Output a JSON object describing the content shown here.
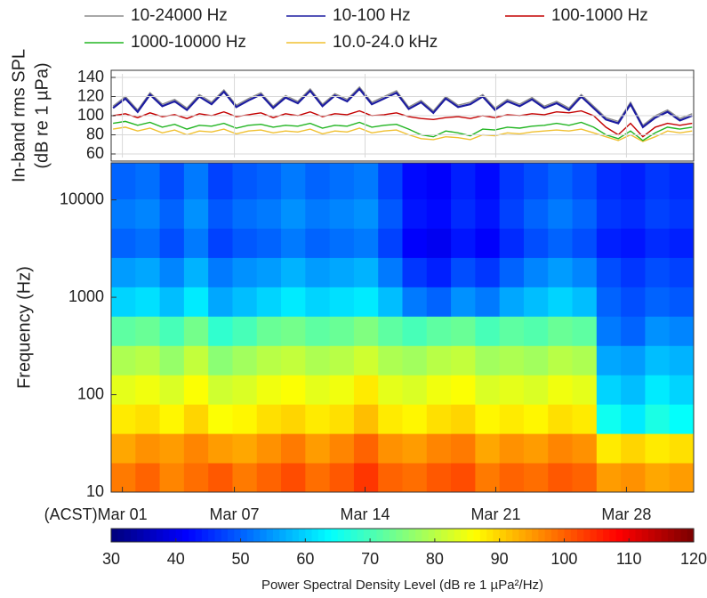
{
  "chart_data": [
    {
      "type": "line",
      "ylabel": [
        "In-band rms SPL",
        "(dB re 1 µPa)"
      ],
      "xlim": [
        0.4,
        31.6
      ],
      "ylim": [
        60,
        140
      ],
      "yticks": [
        60,
        80,
        100,
        120,
        140
      ],
      "xticks": [
        1,
        7,
        14,
        21,
        28
      ],
      "grid": true,
      "x": [
        0.5,
        1.16,
        1.82,
        2.48,
        3.14,
        3.8,
        4.46,
        5.12,
        5.78,
        6.44,
        7.1,
        7.76,
        8.42,
        9.08,
        9.74,
        10.4,
        11.06,
        11.72,
        12.38,
        13.04,
        13.7,
        14.36,
        15.02,
        15.68,
        16.34,
        17.0,
        17.66,
        18.32,
        18.98,
        19.64,
        20.3,
        20.96,
        21.62,
        22.28,
        22.94,
        23.6,
        24.26,
        24.92,
        25.58,
        26.24,
        26.9,
        27.56,
        28.22,
        28.88,
        29.54,
        30.2,
        30.86,
        31.52
      ],
      "series": [
        {
          "name": "10-24000 Hz",
          "color": "#8c8c8c",
          "values": [
            110,
            120,
            106,
            124,
            112,
            117,
            108,
            122,
            114,
            127,
            111,
            118,
            124,
            110,
            121,
            115,
            128,
            112,
            123,
            117,
            130,
            114,
            120,
            126,
            109,
            116,
            105,
            120,
            111,
            114,
            122,
            108,
            117,
            112,
            119,
            110,
            115,
            108,
            122,
            110,
            98,
            94,
            114,
            90,
            100,
            106,
            97,
            102
          ]
        },
        {
          "name": "10-100 Hz",
          "color": "#1c1ca0",
          "values": [
            108,
            118,
            104,
            122,
            110,
            115,
            106,
            120,
            112,
            125,
            109,
            116,
            122,
            108,
            119,
            113,
            126,
            110,
            121,
            115,
            128,
            112,
            118,
            124,
            107,
            114,
            103,
            118,
            109,
            112,
            120,
            106,
            115,
            110,
            117,
            108,
            113,
            106,
            120,
            108,
            96,
            92,
            112,
            88,
            98,
            104,
            95,
            100
          ]
        },
        {
          "name": "100-1000 Hz",
          "color": "#c40000",
          "values": [
            100,
            102,
            98,
            103,
            99,
            101,
            97,
            102,
            100,
            104,
            99,
            101,
            103,
            98,
            102,
            100,
            104,
            99,
            102,
            101,
            105,
            100,
            101,
            103,
            99,
            97,
            96,
            98,
            99,
            97,
            100,
            98,
            101,
            100,
            102,
            101,
            104,
            103,
            105,
            100,
            88,
            80,
            92,
            78,
            88,
            92,
            90,
            92
          ]
        },
        {
          "name": "1000-10000 Hz",
          "color": "#22b522",
          "values": [
            92,
            94,
            90,
            93,
            88,
            91,
            86,
            90,
            89,
            92,
            87,
            90,
            91,
            88,
            90,
            89,
            92,
            87,
            90,
            89,
            93,
            88,
            90,
            91,
            86,
            80,
            78,
            84,
            82,
            79,
            86,
            85,
            88,
            87,
            89,
            90,
            92,
            90,
            93,
            88,
            80,
            76,
            84,
            74,
            82,
            88,
            86,
            88
          ]
        },
        {
          "name": "10.0-24.0 kHz",
          "color": "#f0c030",
          "values": [
            86,
            88,
            84,
            87,
            82,
            85,
            80,
            84,
            83,
            86,
            81,
            84,
            85,
            82,
            84,
            83,
            86,
            81,
            84,
            83,
            87,
            82,
            84,
            85,
            80,
            76,
            75,
            78,
            77,
            75,
            80,
            79,
            82,
            81,
            83,
            84,
            85,
            84,
            86,
            82,
            78,
            74,
            80,
            73,
            78,
            84,
            82,
            84
          ]
        }
      ]
    },
    {
      "type": "heatmap",
      "ylabel": "Frequency (Hz)",
      "x_prefix": "(ACST)",
      "xlim": [
        0.4,
        31.6
      ],
      "ylim": [
        10,
        24000
      ],
      "log_y": true,
      "colormap": "jet",
      "yticks": [
        10,
        100,
        1000,
        10000
      ],
      "xticks": [
        {
          "value": 1,
          "label": "Mar 01"
        },
        {
          "value": 7,
          "label": "Mar 07"
        },
        {
          "value": 14,
          "label": "Mar 14"
        },
        {
          "value": 21,
          "label": "Mar 21"
        },
        {
          "value": 28,
          "label": "Mar 28"
        }
      ],
      "x_edges": [
        0.4,
        1.7,
        3.0,
        4.3,
        5.6,
        6.9,
        8.2,
        9.5,
        10.8,
        12.1,
        13.4,
        14.7,
        16.0,
        17.3,
        18.6,
        19.9,
        21.2,
        22.5,
        23.8,
        25.1,
        26.4,
        27.7,
        29.0,
        30.3,
        31.6
      ],
      "y_edges": [
        10,
        20,
        40,
        80,
        160,
        320,
        640,
        1280,
        2560,
        5120,
        10240,
        24000
      ],
      "z": [
        [
          98,
          100,
          97,
          99,
          101,
          98,
          100,
          102,
          99,
          101,
          104,
          100,
          99,
          101,
          102,
          98,
          100,
          99,
          101,
          100,
          95,
          96,
          94,
          95
        ],
        [
          94,
          96,
          95,
          97,
          95,
          94,
          96,
          98,
          95,
          97,
          100,
          96,
          95,
          97,
          98,
          94,
          96,
          95,
          97,
          96,
          88,
          90,
          88,
          89
        ],
        [
          88,
          89,
          87,
          90,
          86,
          87,
          89,
          90,
          88,
          89,
          92,
          88,
          87,
          89,
          90,
          87,
          88,
          87,
          89,
          88,
          65,
          62,
          66,
          64
        ],
        [
          84,
          85,
          83,
          86,
          82,
          83,
          85,
          86,
          84,
          85,
          88,
          84,
          83,
          85,
          86,
          83,
          84,
          83,
          85,
          84,
          60,
          58,
          62,
          60
        ],
        [
          79,
          80,
          77,
          81,
          76,
          78,
          80,
          81,
          79,
          80,
          82,
          79,
          78,
          80,
          81,
          78,
          79,
          78,
          80,
          79,
          56,
          55,
          58,
          57
        ],
        [
          72,
          73,
          70,
          74,
          68,
          70,
          73,
          74,
          72,
          73,
          75,
          72,
          70,
          72,
          73,
          70,
          72,
          71,
          73,
          72,
          52,
          50,
          54,
          53
        ],
        [
          60,
          61,
          58,
          62,
          56,
          58,
          60,
          62,
          60,
          61,
          62,
          58,
          52,
          50,
          54,
          52,
          56,
          58,
          60,
          58,
          50,
          48,
          50,
          49
        ],
        [
          55,
          56,
          53,
          57,
          52,
          54,
          55,
          57,
          55,
          56,
          57,
          52,
          46,
          44,
          48,
          46,
          50,
          53,
          55,
          53,
          48,
          46,
          48,
          47
        ],
        [
          50,
          51,
          48,
          52,
          47,
          49,
          50,
          52,
          50,
          51,
          52,
          47,
          41,
          40,
          43,
          41,
          45,
          48,
          50,
          48,
          44,
          43,
          45,
          44
        ],
        [
          52,
          53,
          50,
          54,
          49,
          51,
          52,
          54,
          52,
          53,
          54,
          49,
          43,
          42,
          45,
          43,
          47,
          50,
          52,
          50,
          46,
          45,
          47,
          46
        ],
        [
          50,
          51,
          48,
          52,
          47,
          49,
          50,
          52,
          50,
          51,
          52,
          47,
          42,
          41,
          44,
          42,
          46,
          48,
          50,
          48,
          45,
          44,
          46,
          45
        ]
      ]
    },
    {
      "type": "colorbar",
      "colormap": "jet",
      "label": "Power Spectral Density Level (dB re 1 µPa²/Hz)",
      "zlim": [
        30,
        120
      ],
      "ticks": [
        30,
        40,
        50,
        60,
        70,
        80,
        90,
        100,
        110,
        120
      ]
    }
  ]
}
